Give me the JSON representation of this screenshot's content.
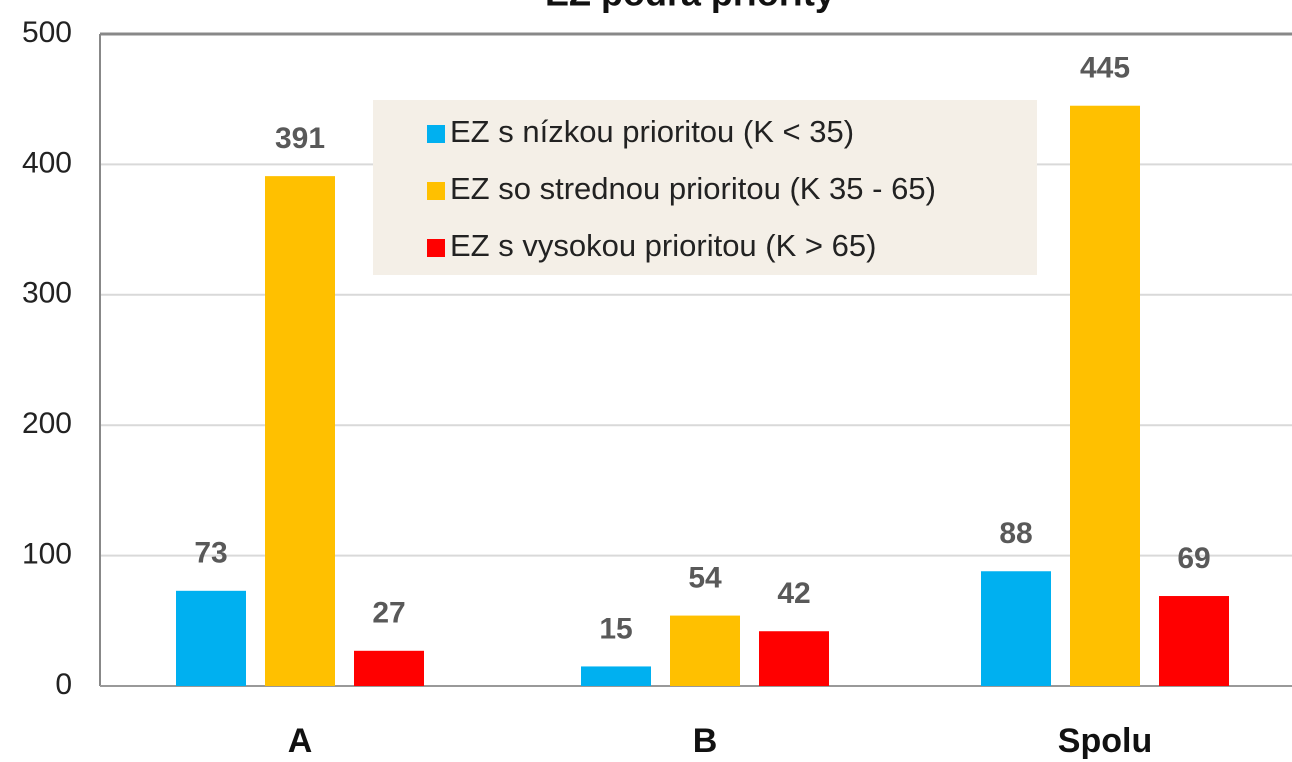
{
  "chart_data": {
    "type": "bar",
    "title": "EZ podľa priority",
    "categories": [
      "A",
      "B",
      "Spolu"
    ],
    "series": [
      {
        "name": "EZ s nízkou prioritou (K < 35)",
        "color": "#00b0f0",
        "values": [
          73,
          15,
          88
        ]
      },
      {
        "name": "EZ so strednou prioritou (K 35 - 65)",
        "color": "#ffc000",
        "values": [
          391,
          54,
          445
        ]
      },
      {
        "name": "EZ s vysokou prioritou (K > 65)",
        "color": "#ff0000",
        "values": [
          27,
          42,
          69
        ]
      }
    ],
    "ylim": [
      0,
      500
    ],
    "yticks": [
      0,
      100,
      200,
      300,
      400,
      500
    ],
    "grid": true,
    "legend": "top"
  }
}
